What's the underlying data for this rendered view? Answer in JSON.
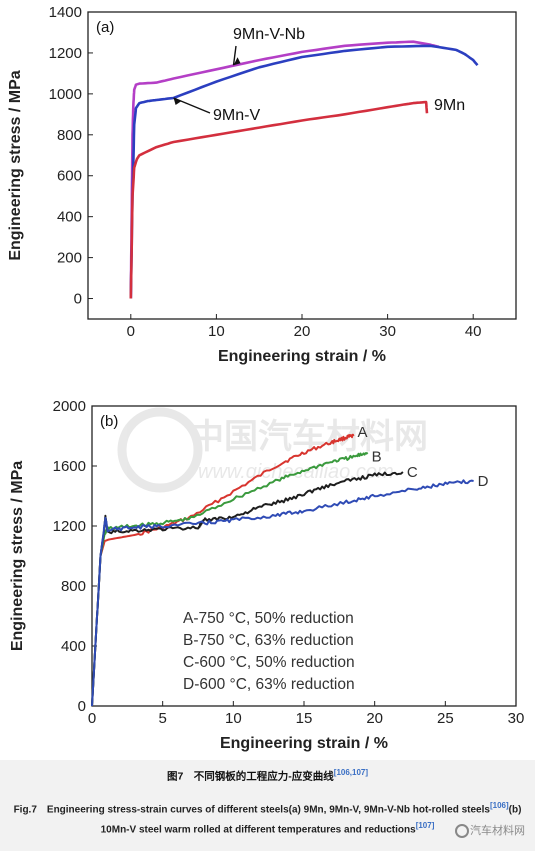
{
  "chart_data": [
    {
      "type": "line",
      "panel_label": "(a)",
      "xlabel": "Engineering strain / %",
      "ylabel": "Engineering stress / MPa",
      "xlim": [
        -5,
        45
      ],
      "ylim": [
        -100,
        1400
      ],
      "xticks": [
        0,
        10,
        20,
        30,
        40
      ],
      "yticks": [
        0,
        200,
        400,
        600,
        800,
        1000,
        1200,
        1400
      ],
      "series": [
        {
          "name": "9Mn-V-Nb",
          "color": "#b43fc6",
          "x": [
            0,
            0.1,
            0.2,
            0.3,
            0.4,
            0.6,
            1,
            3,
            5,
            10,
            15,
            20,
            25,
            30,
            33,
            35,
            36
          ],
          "y": [
            0,
            400,
            800,
            950,
            1020,
            1045,
            1050,
            1055,
            1075,
            1120,
            1165,
            1205,
            1235,
            1250,
            1255,
            1240,
            1230
          ]
        },
        {
          "name": "9Mn-V",
          "color": "#2b3fc0",
          "x": [
            0,
            0.2,
            0.4,
            0.6,
            1,
            2,
            3,
            5,
            10,
            15,
            20,
            25,
            30,
            35,
            38,
            39,
            40,
            40.5
          ],
          "y": [
            0,
            500,
            850,
            930,
            955,
            965,
            970,
            980,
            1060,
            1130,
            1180,
            1210,
            1230,
            1235,
            1215,
            1195,
            1165,
            1140
          ]
        },
        {
          "name": "9Mn",
          "color": "#d32f3e",
          "x": [
            0,
            0.2,
            0.4,
            0.7,
            1,
            3,
            5,
            10,
            15,
            20,
            25,
            30,
            33,
            34.5,
            34.6
          ],
          "y": [
            0,
            500,
            640,
            680,
            700,
            740,
            765,
            800,
            835,
            870,
            900,
            935,
            955,
            960,
            905
          ]
        }
      ],
      "annotations": [
        {
          "text": "9Mn-V-Nb",
          "at_series": "9Mn-V-Nb",
          "x": 12,
          "y": 1140
        },
        {
          "text": "9Mn-V",
          "at_series": "9Mn-V",
          "x": 5,
          "y": 980
        },
        {
          "text": "9Mn",
          "at_series": "9Mn",
          "x": 35,
          "y": 935
        }
      ]
    },
    {
      "type": "line",
      "panel_label": "(b)",
      "xlabel": "Engineering strain / %",
      "ylabel": "Engineering stress / MPa",
      "xlim": [
        0,
        30
      ],
      "ylim": [
        0,
        2000
      ],
      "xticks": [
        0,
        5,
        10,
        15,
        20,
        25,
        30
      ],
      "yticks": [
        0,
        400,
        800,
        1200,
        1600,
        2000
      ],
      "series": [
        {
          "name": "A",
          "color": "#d8352f",
          "x": [
            0,
            0.3,
            0.6,
            0.9,
            1.2,
            3,
            5,
            7,
            10,
            13,
            15,
            17,
            18,
            18.5
          ],
          "y": [
            0,
            500,
            1000,
            1100,
            1110,
            1140,
            1190,
            1260,
            1430,
            1600,
            1690,
            1760,
            1790,
            1800
          ]
        },
        {
          "name": "B",
          "color": "#3a9a3d",
          "x": [
            0,
            0.3,
            0.6,
            0.9,
            1.2,
            3,
            5,
            7,
            10,
            13,
            15,
            17,
            18.5,
            19.5
          ],
          "y": [
            0,
            500,
            1000,
            1150,
            1185,
            1200,
            1220,
            1250,
            1380,
            1500,
            1570,
            1630,
            1660,
            1690
          ]
        },
        {
          "name": "C",
          "color": "#1e1e1e",
          "x": [
            0,
            0.3,
            0.6,
            0.85,
            0.95,
            1.1,
            3,
            5,
            7.5,
            8,
            10,
            12,
            14,
            16,
            18,
            20,
            22
          ],
          "y": [
            0,
            500,
            1000,
            1170,
            1260,
            1160,
            1170,
            1180,
            1190,
            1240,
            1260,
            1330,
            1380,
            1450,
            1500,
            1540,
            1560
          ]
        },
        {
          "name": "D",
          "color": "#2f4bb5",
          "x": [
            0,
            0.3,
            0.6,
            0.85,
            0.95,
            1.1,
            3,
            5,
            8,
            10,
            13,
            15,
            18,
            20,
            23,
            25,
            27
          ],
          "y": [
            0,
            500,
            1000,
            1180,
            1250,
            1175,
            1190,
            1200,
            1220,
            1240,
            1270,
            1300,
            1360,
            1400,
            1450,
            1480,
            1500
          ]
        }
      ],
      "end_labels": [
        "A",
        "B",
        "C",
        "D"
      ],
      "legend": [
        "A-750 °C, 50% reduction",
        "B-750 °C, 63% reduction",
        "C-600 °C, 50% reduction",
        "D-600 °C, 63% reduction"
      ]
    }
  ],
  "watermark": {
    "title": "中国汽车材料网",
    "url": "www.qichecailiao.com",
    "corner": "汽车材料网"
  },
  "caption": {
    "cn": "图7　不同钢板的工程应力-应变曲线",
    "cn_ref": "[106,107]",
    "en_1": "Fig.7　Engineering stress-strain curves of different steels(a) 9Mn, 9Mn-V, 9Mn-V-Nb hot-rolled steels",
    "en_ref1": "[106]",
    "en_2": "(b) 10Mn-V steel warm rolled at different temperatures and reductions",
    "en_ref2": "[107]"
  },
  "colors": {
    "axis": "#222222",
    "caption_bg": "#f2f2f2",
    "ref": "#3a6fc4"
  }
}
